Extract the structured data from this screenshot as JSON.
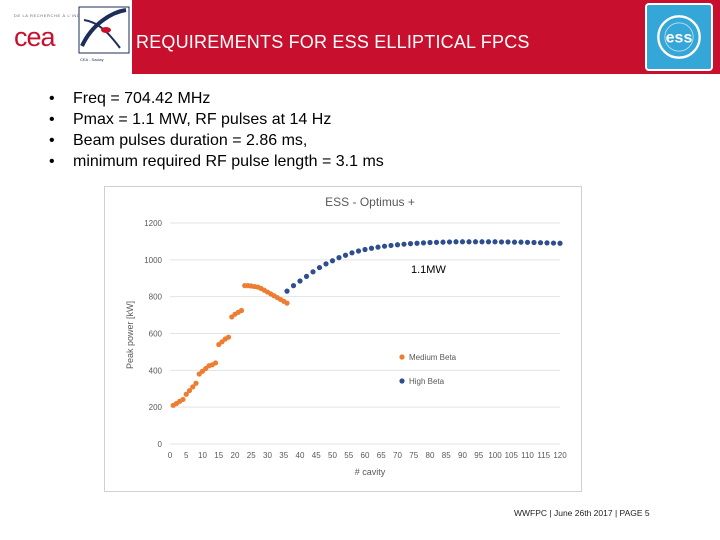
{
  "header": {
    "title": "REQUIREMENTS FOR ESS ELLIPTICAL FPCS",
    "cea_tagline": "DE LA RECHERCHE À L'INDUSTRIE",
    "cea_logo_text": "cea",
    "irfu_caption": "CEA - Saclay",
    "ess_logo_text": "ess",
    "colors": {
      "bar": "#c8102e",
      "ess_logo_bg": "#35a6d8"
    }
  },
  "bullets": [
    "Freq = 704.42 MHz",
    "Pmax = 1.1 MW, RF pulses at 14 Hz",
    "Beam pulses duration  = 2.86 ms,",
    "minimum required RF pulse length = 3.1 ms"
  ],
  "bullet_glyph": "•",
  "footer": {
    "text": "WWFPC | June 26th 2017 |",
    "page": "PAGE 5"
  },
  "chart_data": {
    "type": "scatter",
    "title": "ESS - Optimus +",
    "xlabel": "# cavity",
    "ylabel": "Peak power [kW]",
    "xlim": [
      0,
      120
    ],
    "ylim": [
      0,
      1200
    ],
    "xticks": [
      0,
      5,
      10,
      15,
      20,
      25,
      30,
      35,
      40,
      45,
      50,
      55,
      60,
      65,
      70,
      75,
      80,
      85,
      90,
      95,
      100,
      105,
      110,
      115,
      120
    ],
    "yticks": [
      0,
      200,
      400,
      600,
      800,
      1000,
      1200
    ],
    "grid": "horizontal",
    "legend": "center-right",
    "annotation": {
      "text": "1.1MW",
      "x": 90,
      "y": 970
    },
    "series": [
      {
        "name": "Medium Beta",
        "color": "#ed7d31",
        "x": [
          1,
          2,
          3,
          4,
          5,
          6,
          7,
          8,
          9,
          10,
          11,
          12,
          13,
          14,
          15,
          16,
          17,
          18,
          19,
          20,
          21,
          22,
          23,
          24,
          25,
          26,
          27,
          28,
          29,
          30,
          31,
          32,
          33,
          34,
          35,
          36
        ],
        "y": [
          210,
          220,
          232,
          242,
          270,
          290,
          310,
          330,
          380,
          395,
          410,
          425,
          430,
          440,
          540,
          555,
          570,
          580,
          690,
          705,
          715,
          725,
          860,
          860,
          858,
          855,
          852,
          845,
          835,
          825,
          815,
          805,
          795,
          785,
          775,
          765
        ]
      },
      {
        "name": "High Beta",
        "color": "#2e4e8f",
        "x": [
          36,
          38,
          40,
          42,
          44,
          46,
          48,
          50,
          52,
          54,
          56,
          58,
          60,
          62,
          64,
          66,
          68,
          70,
          72,
          74,
          76,
          78,
          80,
          82,
          84,
          86,
          88,
          90,
          92,
          94,
          96,
          98,
          100,
          102,
          104,
          106,
          108,
          110,
          112,
          114,
          116,
          118,
          120
        ],
        "y": [
          830,
          860,
          885,
          910,
          935,
          958,
          978,
          995,
          1012,
          1025,
          1038,
          1048,
          1056,
          1063,
          1069,
          1074,
          1078,
          1082,
          1085,
          1088,
          1090,
          1092,
          1094,
          1095,
          1096,
          1097,
          1098,
          1098,
          1098,
          1098,
          1098,
          1098,
          1098,
          1097,
          1097,
          1096,
          1096,
          1095,
          1094,
          1093,
          1092,
          1091,
          1090
        ]
      }
    ]
  }
}
